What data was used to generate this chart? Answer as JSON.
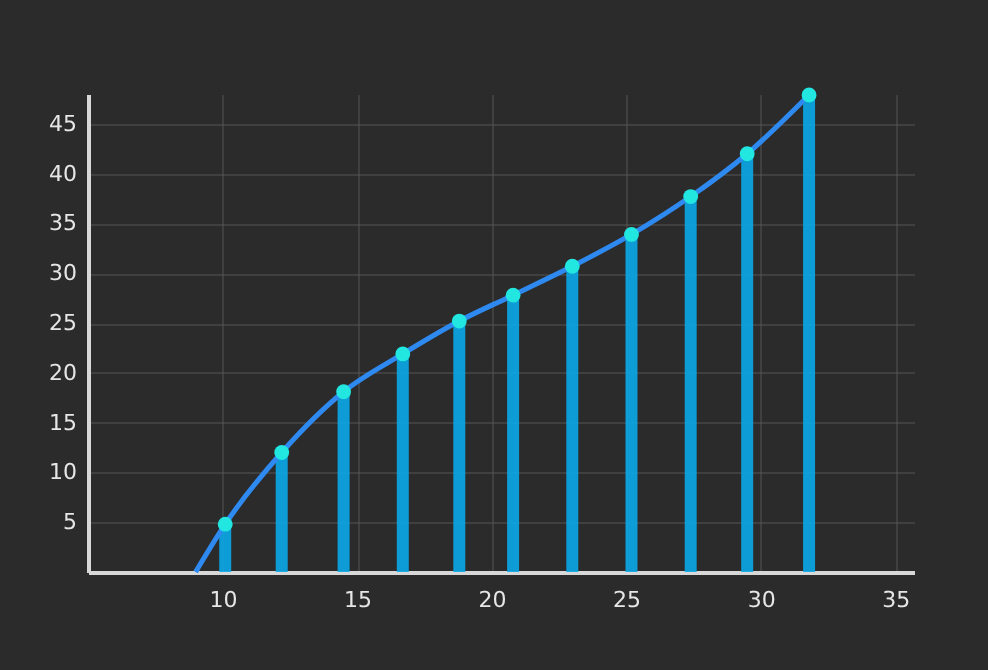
{
  "chart_data": {
    "type": "bar",
    "xlim": [
      5,
      35.7
    ],
    "ylim": [
      0,
      48
    ],
    "xticks": [
      10,
      15,
      20,
      25,
      30,
      35
    ],
    "yticks": [
      5,
      10,
      15,
      20,
      25,
      30,
      35,
      40,
      45
    ],
    "grid": true,
    "series": [
      {
        "color": "#0aa8e8",
        "x": [
          10.1,
          12.2,
          14.5,
          16.7,
          18.8,
          20.8,
          23.0,
          25.2,
          27.4,
          29.5,
          31.8
        ],
        "values": [
          4.8,
          12.0,
          18.1,
          21.9,
          25.2,
          27.8,
          30.7,
          33.9,
          37.7,
          42.0,
          47.9
        ]
      },
      {
        "type": "line",
        "color": "#2e8af0",
        "marker": "none",
        "x": [
          9.0,
          10.1,
          12.2,
          14.5,
          16.7,
          18.8,
          20.8,
          23.0,
          25.2,
          27.4,
          29.5,
          31.8
        ],
        "values": [
          0,
          4.8,
          12.0,
          18.1,
          21.9,
          25.2,
          27.8,
          30.7,
          33.9,
          37.7,
          42.0,
          47.9
        ]
      },
      {
        "type": "scatter",
        "color": "#22e6e0",
        "marker": "circle",
        "x": [
          10.1,
          12.2,
          14.5,
          16.7,
          18.8,
          20.8,
          23.0,
          25.2,
          27.4,
          29.5,
          31.8
        ],
        "values": [
          4.8,
          12.0,
          18.1,
          21.9,
          25.2,
          27.8,
          30.7,
          33.9,
          37.7,
          42.0,
          47.9
        ]
      }
    ]
  }
}
